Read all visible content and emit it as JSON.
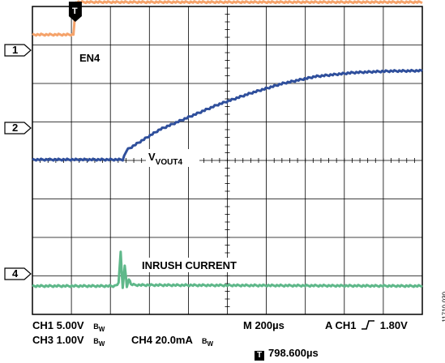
{
  "chart_data": {
    "type": "line",
    "trigger_marker": "T",
    "traces": [
      {
        "channel": "1",
        "label": "EN4",
        "color": "#F5A36B",
        "x_us": [
          0,
          200,
          208,
          212,
          1900
        ],
        "y_div": [
          0.7,
          0.7,
          1.55,
          2.0,
          2.0
        ]
      },
      {
        "channel": "2",
        "label": "V",
        "label_sub": "VOUT4",
        "color": "#2F4F9C",
        "x_us": [
          0,
          440,
          460,
          520,
          620,
          760,
          900,
          1060,
          1220,
          1380,
          1560,
          1740,
          1900
        ],
        "y_div": [
          0.0,
          0.0,
          0.25,
          0.45,
          0.78,
          1.1,
          1.42,
          1.72,
          1.98,
          2.16,
          2.26,
          2.3,
          2.31
        ]
      },
      {
        "channel": "4",
        "label": "INRUSH CURRENT",
        "color": "#5FB88A",
        "x_us": [
          0,
          400,
          420,
          430,
          440,
          450,
          460,
          470,
          480,
          500,
          1900
        ],
        "y_div": [
          0.0,
          0.0,
          0.2,
          2.8,
          -0.2,
          1.7,
          -0.1,
          0.6,
          0.15,
          0.08,
          0.0
        ]
      }
    ],
    "time_per_div_us": 200,
    "divisions": {
      "x": 10,
      "y": 8
    }
  },
  "channel_markers": [
    "1",
    "2",
    "4"
  ],
  "status": {
    "ch1": "CH1 5.00V",
    "ch3": "CH3 1.00V",
    "ch4": "CH4 20.0mA",
    "bw": "B",
    "bw_sub": "W",
    "timebase": "M 200µs",
    "trigger": "A  CH1",
    "trigger_symbol": "_/‾",
    "trigger_level": "1.80V",
    "trigger_pos_icon": "T",
    "trigger_pos": "798.600µs"
  },
  "figure_id": "11710-030"
}
